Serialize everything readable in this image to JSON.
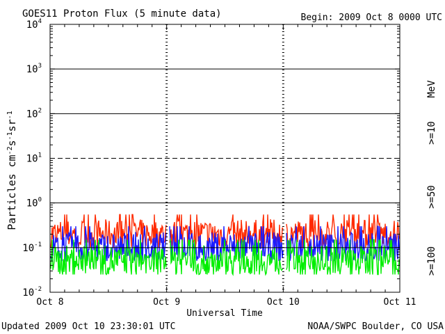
{
  "header": {
    "title": "GOES11 Proton Flux (5 minute data)",
    "begin": "Begin: 2009 Oct 8 0000 UTC"
  },
  "footer": {
    "updated": "Updated 2009 Oct 10 23:30:01 UTC",
    "credit": "NOAA/SWPC Boulder, CO USA"
  },
  "chart_data": {
    "type": "line",
    "title": "GOES11 Proton Flux (5 minute data)",
    "xlabel": "Universal Time",
    "ylabel": "Particles cm-2 s-1 sr-1",
    "y_scale": "log",
    "ylim": [
      0.01,
      10000
    ],
    "xlim": [
      "2009-10-08 00:00",
      "2009-10-11 00:00"
    ],
    "x_ticks": [
      "Oct 8",
      "Oct 9",
      "Oct 10",
      "Oct 11"
    ],
    "y_ticks": [
      {
        "base": "10",
        "exp": "-2"
      },
      {
        "base": "10",
        "exp": "-1"
      },
      {
        "base": "10",
        "exp": "0"
      },
      {
        "base": "10",
        "exp": "1"
      },
      {
        "base": "10",
        "exp": "2"
      },
      {
        "base": "10",
        "exp": "3"
      },
      {
        "base": "10",
        "exp": "4"
      }
    ],
    "y_tick_values": [
      0.01,
      0.1,
      1,
      10,
      100,
      1000,
      10000
    ],
    "reference_lines": [
      {
        "value": 1000,
        "style": "solid"
      },
      {
        "value": 100,
        "style": "solid"
      },
      {
        "value": 10,
        "style": "dashed"
      },
      {
        "value": 1,
        "style": "solid"
      },
      {
        "value": 0.1,
        "style": "solid"
      }
    ],
    "units_label": "MeV",
    "series": [
      {
        "name": ">=10",
        "color": "#ff2a00",
        "typical": 0.2,
        "min": 0.1,
        "max": 0.55
      },
      {
        "name": ">=50",
        "color": "#1a1aff",
        "typical": 0.1,
        "min": 0.05,
        "max": 0.3
      },
      {
        "name": ">=100",
        "color": "#00ee00",
        "typical": 0.05,
        "min": 0.025,
        "max": 0.15
      }
    ],
    "gaps": [
      {
        "start": "2009-10-09 00:00",
        "end": "2009-10-09 00:30"
      },
      {
        "start": "2009-10-10 00:00",
        "end": "2009-10-10 00:30"
      }
    ]
  }
}
